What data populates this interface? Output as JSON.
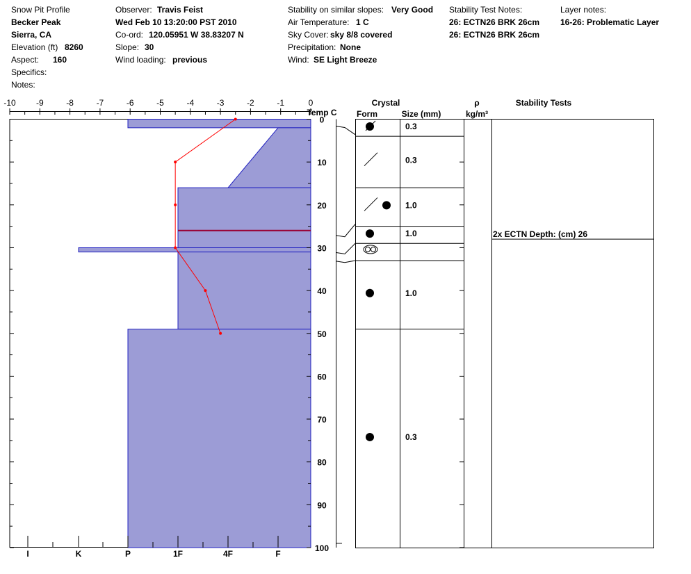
{
  "header": {
    "title": "Snow Pit Profile",
    "location": "Becker Peak",
    "region": "Sierra, CA",
    "elevation_label": "Elevation (ft)",
    "elevation": "8260",
    "aspect_label": "Aspect:",
    "aspect": "160",
    "specifics_label": "Specifics:",
    "notes_label": "Notes:",
    "observer_label": "Observer:",
    "observer": "Travis Feist",
    "datetime": "Wed Feb 10 13:20:00 PST 2010",
    "coord_label": "Co-ord:",
    "coord": "120.05951 W 38.83207 N",
    "slope_label": "Slope:",
    "slope": "30",
    "wind_loading_label": "Wind loading:",
    "wind_loading": "previous",
    "stability_label": "Stability on similar slopes:",
    "stability": "Very Good",
    "air_temp_label": "Air Temperature:",
    "air_temp": "1 C",
    "sky_label": "Sky Cover:",
    "sky": "sky 8/8 covered",
    "precip_label": "Precipitation:",
    "precip": "None",
    "wind_label": "Wind:",
    "wind": "SE Light Breeze",
    "stability_notes_label": "Stability Test Notes:",
    "stability_notes": [
      "26: ECTN26 BRK 26cm",
      "26: ECTN26 BRK 26cm"
    ],
    "layer_notes_label": "Layer notes:",
    "layer_notes": "16-26: Problematic Layer"
  },
  "columns": {
    "temp_label": "Temp C",
    "crystal_label": "Crystal",
    "form_label": "Form",
    "size_label": "Size (mm)",
    "rho_label": "ρ",
    "density_unit": "kg/m³",
    "stability_label": "Stability Tests"
  },
  "stability_test": {
    "depth": 26,
    "label": "2x ECTN   Depth: (cm) 26"
  },
  "colors": {
    "hardness_fill": "#9c9cd6",
    "hardness_edge": "#2020c0",
    "temp_line": "#ff0000",
    "problem_line": "#990033"
  },
  "chart_data": {
    "type": "snow_profile",
    "temperature_axis": {
      "ticks": [
        -10,
        -9,
        -8,
        -7,
        -6,
        -5,
        -4,
        -3,
        -2,
        -1,
        0
      ],
      "range": [
        -10,
        0
      ]
    },
    "depth_axis": {
      "ticks": [
        0,
        10,
        20,
        30,
        40,
        50,
        60,
        70,
        80,
        90,
        100
      ],
      "range": [
        0,
        100
      ]
    },
    "hardness_axis": {
      "ticks": [
        "I",
        "K",
        "P",
        "1F",
        "4F",
        "F"
      ],
      "tick_index": [
        0,
        1,
        2,
        3,
        4,
        5
      ]
    },
    "hardness_layers": [
      {
        "top": 0,
        "bottom": 2,
        "top_hardness": "P",
        "bottom_hardness": "P"
      },
      {
        "top": 2,
        "bottom": 16,
        "top_hardness": "F",
        "bottom_hardness": "4F"
      },
      {
        "top": 16,
        "bottom": 30,
        "top_hardness": "1F",
        "bottom_hardness": "1F"
      },
      {
        "top": 30,
        "bottom": 31,
        "top_hardness": "K",
        "bottom_hardness": "K"
      },
      {
        "top": 31,
        "bottom": 49,
        "top_hardness": "1F",
        "bottom_hardness": "1F"
      },
      {
        "top": 49,
        "bottom": 100,
        "top_hardness": "P",
        "bottom_hardness": "P"
      }
    ],
    "problem_layer_depth": 26,
    "temperature_profile": [
      {
        "depth": 0,
        "temp": -2.5
      },
      {
        "depth": 10,
        "temp": -4.5
      },
      {
        "depth": 20,
        "temp": -4.5
      },
      {
        "depth": 30,
        "temp": -4.5
      },
      {
        "depth": 40,
        "temp": -3.5
      },
      {
        "depth": 50,
        "temp": -3.0
      }
    ],
    "crystal_layers": [
      {
        "top": 0,
        "bottom": 4,
        "mid": 1.7,
        "forms": [
          "rounded-slash"
        ],
        "size": "0.3"
      },
      {
        "top": 4,
        "bottom": 16,
        "mid": 9.6,
        "forms": [
          "slash"
        ],
        "size": "0.3"
      },
      {
        "top": 16,
        "bottom": 25,
        "mid": 20.1,
        "forms": [
          "slash",
          "dot"
        ],
        "size": "1.0"
      },
      {
        "top": 25,
        "bottom": 29,
        "mid": 26.7,
        "forms": [
          "dot"
        ],
        "size": "1.0"
      },
      {
        "top": 29,
        "bottom": 33,
        "mid": 30.4,
        "forms": [
          "double-ring"
        ],
        "size": ""
      },
      {
        "top": 33,
        "bottom": 49,
        "mid": 40.6,
        "forms": [
          "dot"
        ],
        "size": "1.0"
      },
      {
        "top": 49,
        "bottom": 100,
        "mid": 74.2,
        "forms": [
          "dot"
        ],
        "size": "0.3"
      }
    ]
  }
}
